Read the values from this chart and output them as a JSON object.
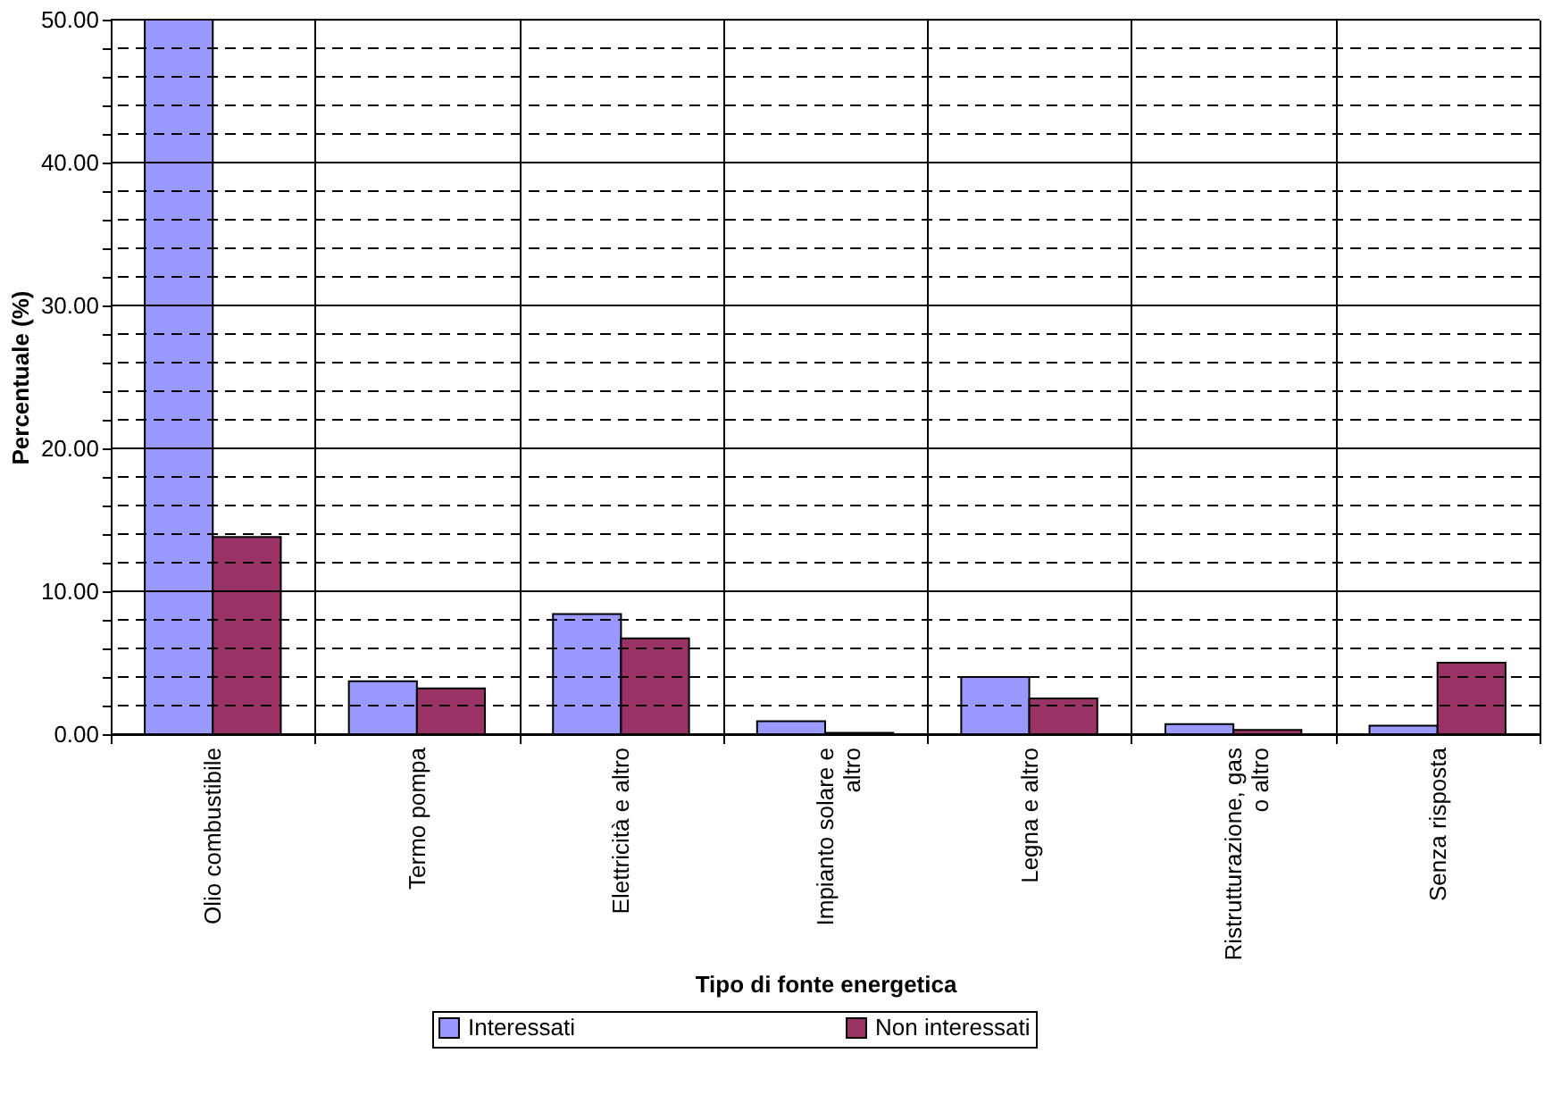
{
  "chart_data": {
    "type": "bar",
    "xlabel": "Tipo di fonte energetica",
    "ylabel": "Percentuale (%)",
    "categories": [
      "Olio combustibile",
      "Termo pompa",
      "Elettricità e altro",
      "Impianto solare e altro",
      "Legna e altro",
      "Ristrutturazione, gas o altro",
      "Senza risposta"
    ],
    "series": [
      {
        "name": "Interessati",
        "color": "#9999ff",
        "values": [
          50.0,
          3.7,
          8.4,
          0.9,
          4.0,
          0.7,
          0.6
        ]
      },
      {
        "name": "Non interessati",
        "color": "#993366",
        "values": [
          13.8,
          3.2,
          6.7,
          0.1,
          2.5,
          0.3,
          5.0
        ]
      }
    ],
    "ylim": [
      0,
      50
    ],
    "yticks": [
      {
        "value": 0,
        "label": "0.00"
      },
      {
        "value": 2,
        "label": null
      },
      {
        "value": 4,
        "label": null
      },
      {
        "value": 6,
        "label": null
      },
      {
        "value": 8,
        "label": null
      },
      {
        "value": 10,
        "label": "10.00"
      },
      {
        "value": 12,
        "label": null
      },
      {
        "value": 14,
        "label": null
      },
      {
        "value": 16,
        "label": null
      },
      {
        "value": 18,
        "label": null
      },
      {
        "value": 20,
        "label": "20.00"
      },
      {
        "value": 22,
        "label": null
      },
      {
        "value": 24,
        "label": null
      },
      {
        "value": 26,
        "label": null
      },
      {
        "value": 28,
        "label": null
      },
      {
        "value": 30,
        "label": "30.00"
      },
      {
        "value": 32,
        "label": null
      },
      {
        "value": 34,
        "label": null
      },
      {
        "value": 36,
        "label": null
      },
      {
        "value": 38,
        "label": null
      },
      {
        "value": 40,
        "label": "40.00"
      },
      {
        "value": 42,
        "label": null
      },
      {
        "value": 44,
        "label": null
      },
      {
        "value": 46,
        "label": null
      },
      {
        "value": 48,
        "label": null
      },
      {
        "value": 50,
        "label": "50.00"
      }
    ],
    "grid": true,
    "legend": "bottom"
  }
}
